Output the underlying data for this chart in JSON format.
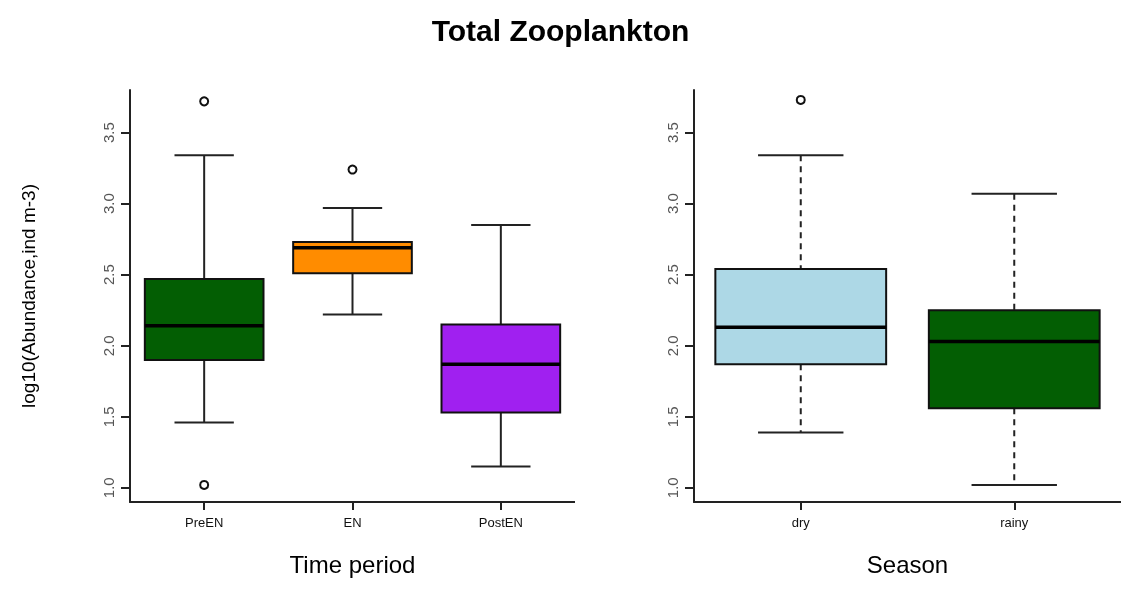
{
  "chart_data": [
    {
      "type": "box",
      "title": "Total Zooplankton",
      "xlabel": "Time period",
      "ylabel": "log10(Abundance,ind m-3)",
      "categories": [
        "PreEN",
        "EN",
        "PostEN"
      ],
      "colors": [
        "#035e03",
        "#ff8c00",
        "#a020f0"
      ],
      "boxes": [
        {
          "low": 1.46,
          "q1": 1.9,
          "median": 2.14,
          "q3": 2.47,
          "high": 3.34,
          "outliers": [
            3.72,
            1.02
          ]
        },
        {
          "low": 2.22,
          "q1": 2.51,
          "median": 2.69,
          "q3": 2.73,
          "high": 2.97,
          "outliers": [
            3.24
          ]
        },
        {
          "low": 1.15,
          "q1": 1.53,
          "median": 1.87,
          "q3": 2.15,
          "high": 2.85
        }
      ],
      "line_style": "solid",
      "grid": false,
      "ylim": [
        0.9,
        3.8
      ],
      "yticks": [
        {
          "value": 1,
          "label": "1.0"
        },
        {
          "value": 1.5,
          "label": "1.5"
        },
        {
          "value": 2,
          "label": "2.0"
        },
        {
          "value": 2.5,
          "label": "2.5"
        },
        {
          "value": 3,
          "label": "3.0"
        },
        {
          "value": 3.5,
          "label": "3.5"
        }
      ]
    },
    {
      "type": "box",
      "xlabel": "Season",
      "categories": [
        "dry",
        "rainy"
      ],
      "colors": [
        "#add8e6",
        "#035e03"
      ],
      "boxes": [
        {
          "low": 1.39,
          "q1": 1.87,
          "median": 2.13,
          "q3": 2.54,
          "high": 3.34,
          "outliers": [
            3.73
          ]
        },
        {
          "low": 1.02,
          "q1": 1.56,
          "median": 2.03,
          "q3": 2.25,
          "high": 3.07
        }
      ],
      "line_style": "dashed",
      "grid": false,
      "ylim": [
        0.9,
        3.8
      ],
      "yticks": [
        {
          "value": 1,
          "label": "1.0"
        },
        {
          "value": 1.5,
          "label": "1.5"
        },
        {
          "value": 2,
          "label": "2.0"
        },
        {
          "value": 2.5,
          "label": "2.5"
        },
        {
          "value": 3,
          "label": "3.0"
        },
        {
          "value": 3.5,
          "label": "3.5"
        }
      ]
    }
  ]
}
